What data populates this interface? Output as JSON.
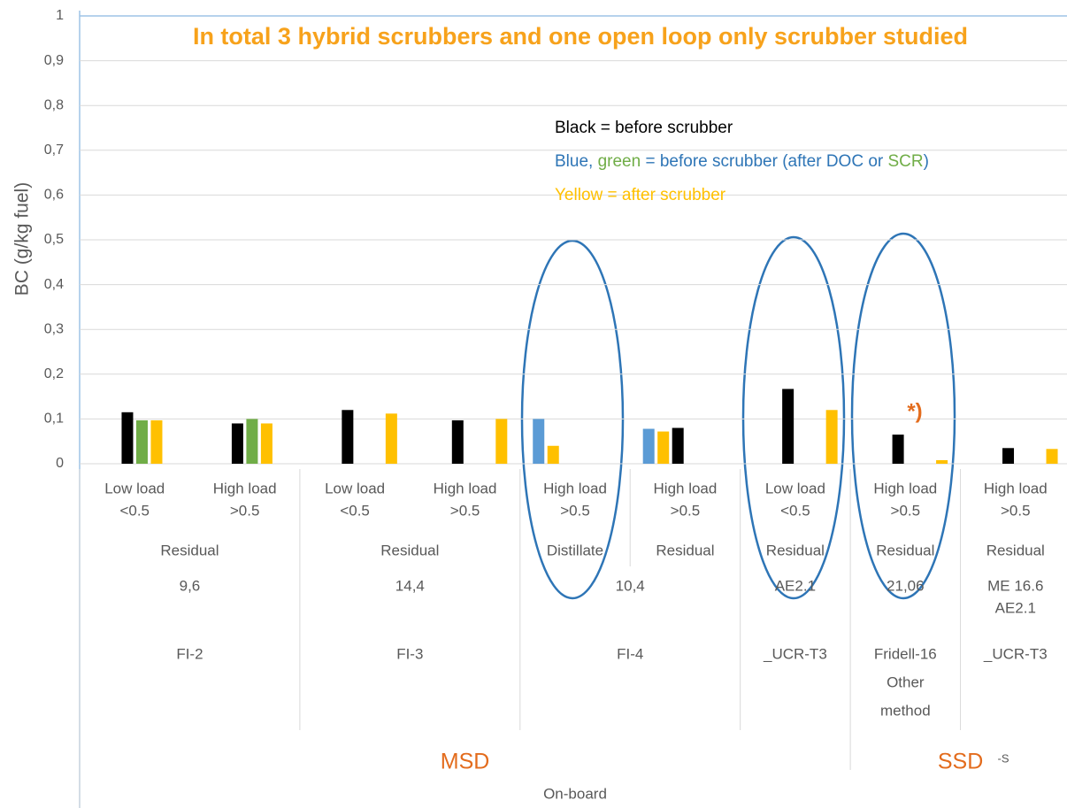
{
  "chart_data": {
    "type": "bar",
    "title": "In total 3 hybrid scrubbers and one open loop only scrubber studied",
    "y_label": "BC (g/kg fuel)",
    "ylim": [
      0,
      1
    ],
    "yticks": [
      0,
      {
        "value": 0.1,
        "label": "0,1"
      },
      {
        "value": 0.2,
        "label": "0,2"
      },
      {
        "value": 0.3,
        "label": "0,3"
      },
      {
        "value": 0.4,
        "label": "0,4"
      },
      {
        "value": 0.5,
        "label": "0,5"
      },
      {
        "value": 0.6,
        "label": "0,6"
      },
      {
        "value": 0.7,
        "label": "0,7"
      },
      {
        "value": 0.8,
        "label": "0,8"
      },
      {
        "value": 0.9,
        "label": "0,9"
      },
      1
    ],
    "grid": true,
    "categories": [
      [
        "Low load",
        "<0.5"
      ],
      [
        "High load",
        ">0.5"
      ],
      [
        "Low load",
        "<0.5"
      ],
      [
        "High load",
        ">0.5"
      ],
      [
        "High load",
        ">0.5"
      ],
      [
        "High load",
        ">0.5"
      ],
      [
        "Low load",
        "<0.5"
      ],
      [
        "High load",
        ">0.5"
      ],
      [
        "High load",
        ">0.5"
      ]
    ],
    "category_levels": [
      [
        {
          "label": [
            "Residual"
          ],
          "span": 2
        },
        {
          "label": [
            "Residual"
          ],
          "span": 2
        },
        {
          "label": [
            "Distillate"
          ],
          "span": 1
        },
        {
          "label": [
            "Residual"
          ],
          "span": 1
        },
        {
          "label": [
            "Residual"
          ],
          "span": 1
        },
        {
          "label": [
            "Residual"
          ],
          "span": 1
        },
        {
          "label": [
            "Residual"
          ],
          "span": 1
        }
      ],
      [
        {
          "label": [
            "9,6"
          ],
          "span": 2
        },
        {
          "label": [
            "14,4"
          ],
          "span": 2
        },
        {
          "label": [
            "10,4"
          ],
          "span": 2
        },
        {
          "label": [
            "AE2.1"
          ],
          "span": 1
        },
        {
          "label": [
            "21,06"
          ],
          "span": 1
        },
        {
          "label": [
            "ME 16.6",
            "AE2.1"
          ],
          "span": 1
        }
      ],
      [
        {
          "label": [
            "FI-2"
          ],
          "span": 2
        },
        {
          "label": [
            "FI-3"
          ],
          "span": 2
        },
        {
          "label": [
            "FI-4"
          ],
          "span": 2
        },
        {
          "label": [
            "_UCR-T3"
          ],
          "span": 1
        },
        {
          "label": [
            "Fridell-16",
            "Other",
            "method"
          ],
          "span": 1
        },
        {
          "label": [
            "_UCR-T3"
          ],
          "span": 1
        }
      ],
      [
        {
          "label": [
            "MSD"
          ],
          "span": 7
        },
        {
          "label": [
            "SSD"
          ],
          "span": 2
        }
      ],
      [
        {
          "label": [
            "On-board"
          ],
          "span": 9
        }
      ]
    ],
    "series": [
      {
        "color": "#5b9bd5",
        "values": [
          null,
          null,
          null,
          null,
          0.1,
          0.078,
          null,
          null,
          null
        ]
      },
      {
        "color": "#ffc000",
        "values": [
          null,
          null,
          null,
          null,
          0.04,
          0.072,
          null,
          null,
          null
        ]
      },
      {
        "color": "#000000",
        "values": [
          0.115,
          0.09,
          0.12,
          0.097,
          null,
          0.08,
          0.167,
          0.065,
          0.035
        ]
      },
      {
        "color": "#70ad47",
        "values": [
          0.097,
          0.1,
          null,
          null,
          null,
          null,
          null,
          null,
          null
        ]
      },
      {
        "color": "#ffc000",
        "values": [
          0.097,
          0.09,
          null,
          null,
          null,
          null,
          null,
          null,
          null
        ]
      },
      {
        "color": "#ffc000",
        "values": [
          null,
          null,
          0.112,
          0.1,
          null,
          null,
          0.12,
          0.008,
          0.033
        ]
      }
    ],
    "notes": [
      [
        {
          "text": "Black = before scrubber",
          "color": "#000000"
        }
      ],
      [
        {
          "text": "Blue,",
          "color": "#2e75b6"
        },
        {
          "text": " green",
          "color": "#70ad47"
        },
        {
          "text": " = before scrubber (after DOC or ",
          "color": "#2e75b6"
        },
        {
          "text": "SCR",
          "color": "#70ad47"
        },
        {
          "text": ")",
          "color": "#2e75b6"
        }
      ],
      [
        {
          "text": "Yellow = after scrubber",
          "color": "#ffc000"
        }
      ]
    ],
    "footnote_mark": "*)",
    "ssd_suffix": "-S"
  }
}
